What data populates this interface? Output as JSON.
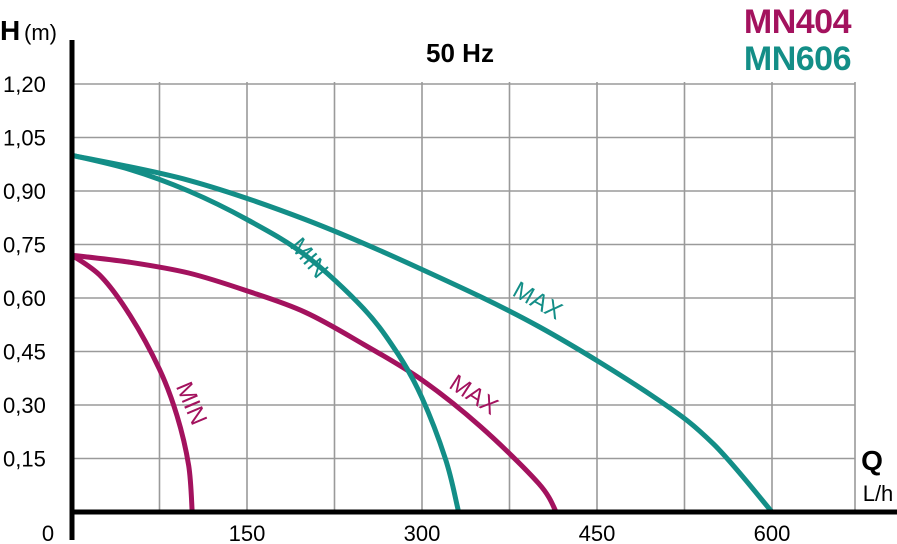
{
  "chart_data": {
    "type": "line",
    "title": "50 Hz",
    "y_axis": {
      "symbol": "H",
      "unit": "(m)",
      "ticks": [
        "0,15",
        "0,30",
        "0,45",
        "0,60",
        "0,75",
        "0,90",
        "1,05",
        "1,20"
      ],
      "range": [
        0,
        1.2
      ]
    },
    "x_axis": {
      "symbol": "Q",
      "unit": "L/h",
      "ticks": [
        "0",
        "150",
        "300",
        "450",
        "600"
      ],
      "range": [
        0,
        700
      ]
    },
    "grid": true,
    "legend_position": "top-right",
    "legend": [
      {
        "name": "MN404",
        "color": "#A3125E"
      },
      {
        "name": "MN606",
        "color": "#138E87"
      }
    ],
    "series": [
      {
        "name": "MN404",
        "curve": "MIN",
        "color": "#A3125E",
        "points": [
          [
            0,
            0.72
          ],
          [
            25,
            0.66
          ],
          [
            50,
            0.55
          ],
          [
            75,
            0.4
          ],
          [
            90,
            0.27
          ],
          [
            100,
            0.13
          ],
          [
            103,
            0.0
          ]
        ]
      },
      {
        "name": "MN404",
        "curve": "MAX",
        "color": "#A3125E",
        "points": [
          [
            0,
            0.72
          ],
          [
            50,
            0.7
          ],
          [
            100,
            0.67
          ],
          [
            150,
            0.62
          ],
          [
            200,
            0.56
          ],
          [
            250,
            0.47
          ],
          [
            300,
            0.37
          ],
          [
            350,
            0.24
          ],
          [
            400,
            0.08
          ],
          [
            415,
            0.0
          ]
        ]
      },
      {
        "name": "MN606",
        "curve": "MIN",
        "color": "#138E87",
        "points": [
          [
            0,
            1.0
          ],
          [
            50,
            0.96
          ],
          [
            100,
            0.9
          ],
          [
            150,
            0.82
          ],
          [
            200,
            0.72
          ],
          [
            250,
            0.57
          ],
          [
            280,
            0.44
          ],
          [
            300,
            0.32
          ],
          [
            320,
            0.15
          ],
          [
            330,
            0.02
          ],
          [
            331,
            0.0
          ]
        ]
      },
      {
        "name": "MN606",
        "curve": "MAX",
        "color": "#138E87",
        "points": [
          [
            0,
            1.0
          ],
          [
            100,
            0.93
          ],
          [
            200,
            0.82
          ],
          [
            300,
            0.68
          ],
          [
            400,
            0.52
          ],
          [
            500,
            0.32
          ],
          [
            550,
            0.19
          ],
          [
            600,
            0.0
          ]
        ]
      }
    ],
    "annotations": [
      {
        "text": "MIN",
        "series": "MN404 MIN",
        "color": "#A3125E"
      },
      {
        "text": "MAX",
        "series": "MN404 MAX",
        "color": "#A3125E"
      },
      {
        "text": "MIN",
        "series": "MN606 MIN",
        "color": "#138E87"
      },
      {
        "text": "MAX",
        "series": "MN606 MAX",
        "color": "#138E87"
      }
    ]
  }
}
